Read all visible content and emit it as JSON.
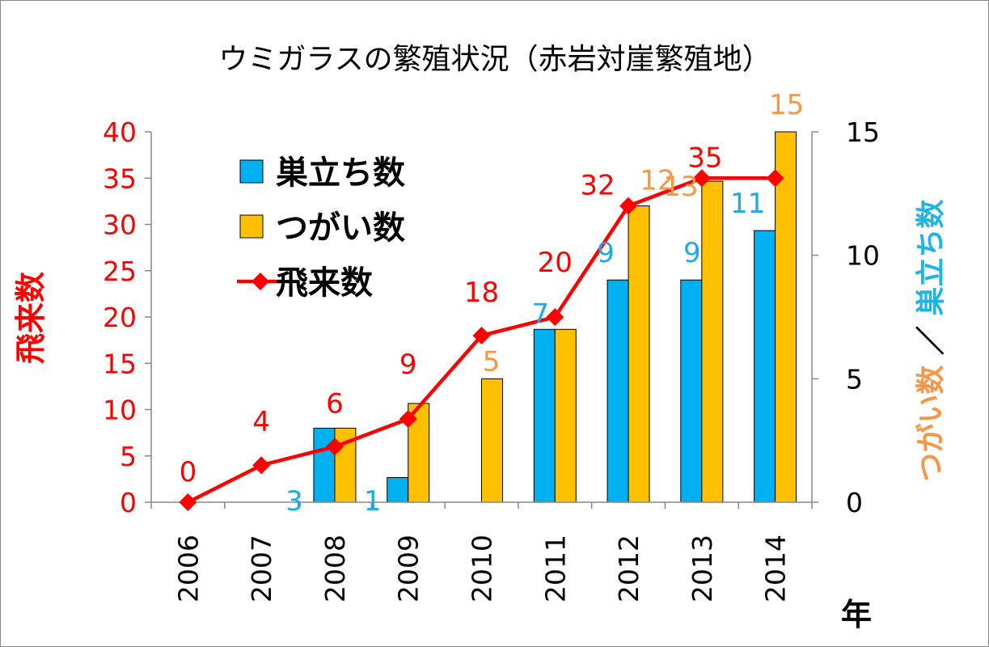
{
  "chart_data": {
    "type": "bar+line",
    "title": "ウミガラスの繁殖状況（赤岩対崖繁殖地）",
    "categories": [
      "2006",
      "2007",
      "2008",
      "2009",
      "2010",
      "2011",
      "2012",
      "2013",
      "2014"
    ],
    "xlabel": "年",
    "y_left": {
      "label": "飛来数",
      "range": [
        0,
        40
      ],
      "ticks": [
        "0",
        "5",
        "10",
        "15",
        "20",
        "25",
        "30",
        "35",
        "40"
      ],
      "color": "#ff0000"
    },
    "y_right": {
      "label_part1": "巣立ち数",
      "separator": "／",
      "label_part2": "つがい数",
      "range": [
        0,
        15
      ],
      "ticks": [
        "0",
        "5",
        "10",
        "15"
      ],
      "color_part1": "#1eb4e6",
      "color_part2": "#f79646"
    },
    "series": [
      {
        "name": "巣立ち数",
        "type": "bar",
        "axis": "right",
        "color": "#00b0f0",
        "values": [
          0,
          0,
          3,
          1,
          0,
          7,
          9,
          9,
          11
        ],
        "labels": [
          "",
          "",
          "3",
          "1",
          "",
          "7",
          "9",
          "9",
          "11"
        ],
        "label_color": "#1eaae6"
      },
      {
        "name": "つがい数",
        "type": "bar",
        "axis": "right",
        "color": "#ffc000",
        "values": [
          0,
          0,
          3,
          4,
          5,
          7,
          12,
          13,
          15
        ],
        "labels": [
          "",
          "",
          "",
          "",
          "5",
          "",
          "12",
          "13",
          "15"
        ],
        "label_color": "#f79646"
      },
      {
        "name": "飛来数",
        "type": "line",
        "axis": "left",
        "color": "#ff0000",
        "values": [
          0,
          4,
          6,
          9,
          18,
          20,
          32,
          35,
          35
        ],
        "labels": [
          "0",
          "4",
          "6",
          "9",
          "18",
          "20",
          "32",
          "35",
          "35"
        ],
        "label_color": "#ff0000"
      }
    ],
    "legend": {
      "position": "top-left"
    }
  }
}
